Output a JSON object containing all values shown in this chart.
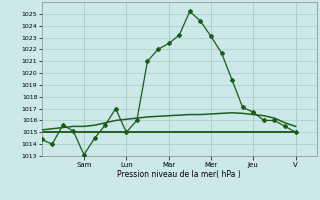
{
  "xlabel": "Pression niveau de la mer( hPa )",
  "bg_color": "#cce8e8",
  "plot_bg_color": "#cce8e8",
  "grid_color": "#aacccc",
  "line_color": "#1a5c1a",
  "ylim": [
    1013,
    1026
  ],
  "yticks": [
    1013,
    1014,
    1015,
    1016,
    1017,
    1018,
    1019,
    1020,
    1021,
    1022,
    1023,
    1024,
    1025
  ],
  "day_labels": [
    "Sam",
    "Lun",
    "Mar",
    "Mer",
    "Jeu",
    "V"
  ],
  "day_positions": [
    2.0,
    4.0,
    6.0,
    8.0,
    10.0,
    12.0
  ],
  "xlim": [
    0,
    13.0
  ],
  "series1_x": [
    0.0,
    0.5,
    1.0,
    1.5,
    2.0,
    2.5,
    3.0,
    3.5,
    4.0,
    4.5,
    5.0,
    5.5,
    6.0,
    6.5,
    7.0,
    7.5,
    8.0,
    8.5,
    9.0,
    9.5,
    10.0,
    10.5,
    11.0,
    11.5,
    12.0
  ],
  "series1_y": [
    1014.4,
    1014.0,
    1015.6,
    1015.1,
    1013.1,
    1014.5,
    1015.6,
    1017.0,
    1015.0,
    1016.0,
    1021.0,
    1022.0,
    1022.5,
    1023.2,
    1025.2,
    1024.4,
    1023.1,
    1021.7,
    1019.4,
    1017.1,
    1016.7,
    1016.0,
    1016.0,
    1015.5,
    1015.0
  ],
  "series2_x": [
    0.0,
    0.5,
    1.0,
    1.5,
    2.0,
    2.5,
    3.0,
    3.5,
    4.0,
    4.5,
    5.0,
    5.5,
    6.0,
    6.5,
    7.0,
    7.5,
    8.0,
    8.5,
    9.0,
    9.5,
    10.0,
    10.5,
    11.0,
    11.5,
    12.0
  ],
  "series2_y": [
    1015.2,
    1015.3,
    1015.4,
    1015.5,
    1015.5,
    1015.6,
    1015.8,
    1016.0,
    1016.1,
    1016.2,
    1016.3,
    1016.35,
    1016.4,
    1016.45,
    1016.5,
    1016.5,
    1016.55,
    1016.6,
    1016.65,
    1016.6,
    1016.5,
    1016.4,
    1016.2,
    1015.8,
    1015.5
  ],
  "series3_x": [
    0.0,
    12.0
  ],
  "series3_y": [
    1015.0,
    1015.0
  ],
  "marker_size": 2.0,
  "linewidth": 0.9
}
